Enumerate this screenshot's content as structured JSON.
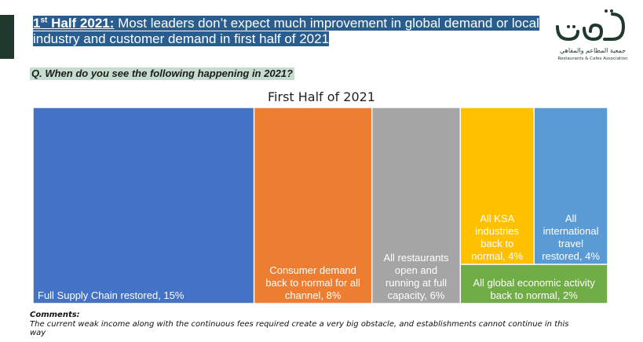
{
  "header": {
    "title_lead_number": "1",
    "title_lead_sup": "st",
    "title_lead_rest": " Half 2021:",
    "title_rest": " Most leaders don’t expect much improvement in global demand or local industry and customer demand in first half of 2021"
  },
  "logo": {
    "arabic_text": "جمعية المطاعم والمقاهي",
    "english_text": "Restaurants & Cafes Association",
    "color": "#1f3a2c"
  },
  "question": "Q. When do you see the following happening in 2021?",
  "comments": {
    "heading": "Comments:",
    "text": "The current weak income along with the continuous fees required create a very big obstacle, and establishments cannot continue in this way"
  },
  "chart_data": {
    "type": "treemap",
    "title": "First Half of 2021",
    "items": [
      {
        "label": "Full Supply Chain restored",
        "value": 15,
        "display": "Full Supply Chain restored, 15%",
        "color": "#4472c4"
      },
      {
        "label": "Consumer demand back to normal for all channel",
        "value": 8,
        "display": "Consumer demand back to normal for all channel, 8%",
        "color": "#ed7d31"
      },
      {
        "label": "All restaurants open and running at full capacity",
        "value": 6,
        "display": "All restaurants open and running at full capacity, 6%",
        "color": "#a5a5a5"
      },
      {
        "label": "All KSA industries back to normal",
        "value": 4,
        "display": "All KSA industries back to normal, 4%",
        "color": "#ffc000"
      },
      {
        "label": "All international travel restored",
        "value": 4,
        "display": "All international travel restored, 4%",
        "color": "#5b9bd5"
      },
      {
        "label": "All global economic activity back to normal",
        "value": 2,
        "display": "All global economic activity back to normal, 2%",
        "color": "#70ad47"
      }
    ]
  }
}
